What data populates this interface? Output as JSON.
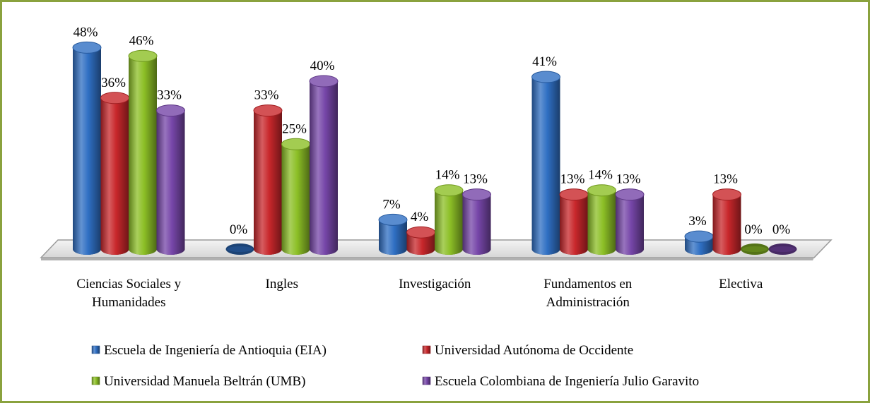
{
  "chart_data": {
    "type": "bar",
    "categories": [
      "Ciencias Sociales y Humanidades",
      "Ingles",
      "Investigación",
      "Fundamentos en Administración",
      "Electiva"
    ],
    "series": [
      {
        "name": "Escuela de Ingeniería de Antioquia (EIA)",
        "color": "#2f6fc3",
        "values": [
          48,
          0,
          7,
          41,
          3
        ],
        "value_labels": [
          "48%",
          "0%",
          "7%",
          "41%",
          "3%"
        ]
      },
      {
        "name": "Universidad Autónoma de Occidente",
        "color": "#c8272b",
        "values": [
          36,
          33,
          4,
          13,
          13
        ],
        "value_labels": [
          "36%",
          "33%",
          "4%",
          "13%",
          "13%"
        ]
      },
      {
        "name": "Universidad Manuela Beltrán (UMB)",
        "color": "#8cbf26",
        "values": [
          46,
          25,
          14,
          14,
          0
        ],
        "value_labels": [
          "46%",
          "25%",
          "14%",
          "14%",
          "0%"
        ]
      },
      {
        "name": "Escuela Colombiana de Ingeniería Julio Garavito",
        "color": "#7646a8",
        "values": [
          33,
          40,
          13,
          13,
          0
        ],
        "value_labels": [
          "33%",
          "40%",
          "13%",
          "13%",
          "0%"
        ]
      }
    ]
  }
}
